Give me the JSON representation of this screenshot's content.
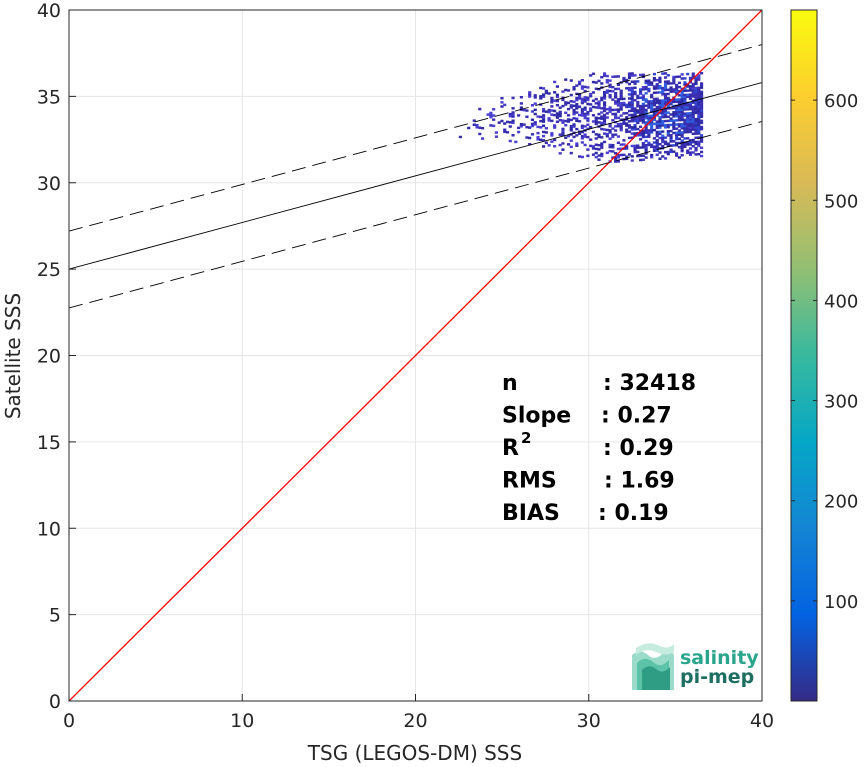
{
  "chart_data": {
    "type": "heatmap",
    "title": "",
    "xlabel": "TSG (LEGOS-DM) SSS",
    "ylabel": "Satellite SSS",
    "xlim": [
      0,
      40
    ],
    "ylim": [
      0,
      40
    ],
    "xticks": [
      "0",
      "10",
      "20",
      "30",
      "40"
    ],
    "yticks": [
      "0",
      "5",
      "10",
      "15",
      "20",
      "25",
      "30",
      "35",
      "40"
    ],
    "grid": true,
    "identity_line": {
      "color": "#ff0000",
      "from": [
        0,
        0
      ],
      "to": [
        40,
        40
      ]
    },
    "regression_line": {
      "slope": 0.27,
      "intercept": 25.0,
      "color": "#000000"
    },
    "confidence_bounds": {
      "upper_intercept": 27.2,
      "lower_intercept": 22.75,
      "slope": 0.27,
      "style": "dashed"
    },
    "density_region": {
      "x_range": [
        22.5,
        36.5
      ],
      "y_range": [
        31.0,
        36.3
      ],
      "peak": [
        34.5,
        34.2
      ]
    },
    "colorbar": {
      "ticks": [
        "100",
        "200",
        "300",
        "400",
        "500",
        "600"
      ],
      "tick_values": [
        100,
        200,
        300,
        400,
        500,
        600
      ],
      "range": [
        0,
        690
      ],
      "colormap": [
        "#352a87",
        "#0363e1",
        "#1485d4",
        "#06a7c6",
        "#38b99e",
        "#92bf73",
        "#d9ba56",
        "#fcce2e",
        "#f9fb0e"
      ]
    },
    "stats": [
      {
        "label": "n",
        "value": ": 32418"
      },
      {
        "label": "Slope",
        "value": ": 0.27"
      },
      {
        "label": "R",
        "sup": "2",
        "value": ": 0.29"
      },
      {
        "label": "RMS",
        "value": ": 1.69"
      },
      {
        "label": "BIAS",
        "value": ": 0.19"
      }
    ]
  },
  "logo": {
    "line1": "salinity",
    "line2": "pi-mep",
    "color1": "#2aa58c",
    "color2": "#1e6f63"
  }
}
